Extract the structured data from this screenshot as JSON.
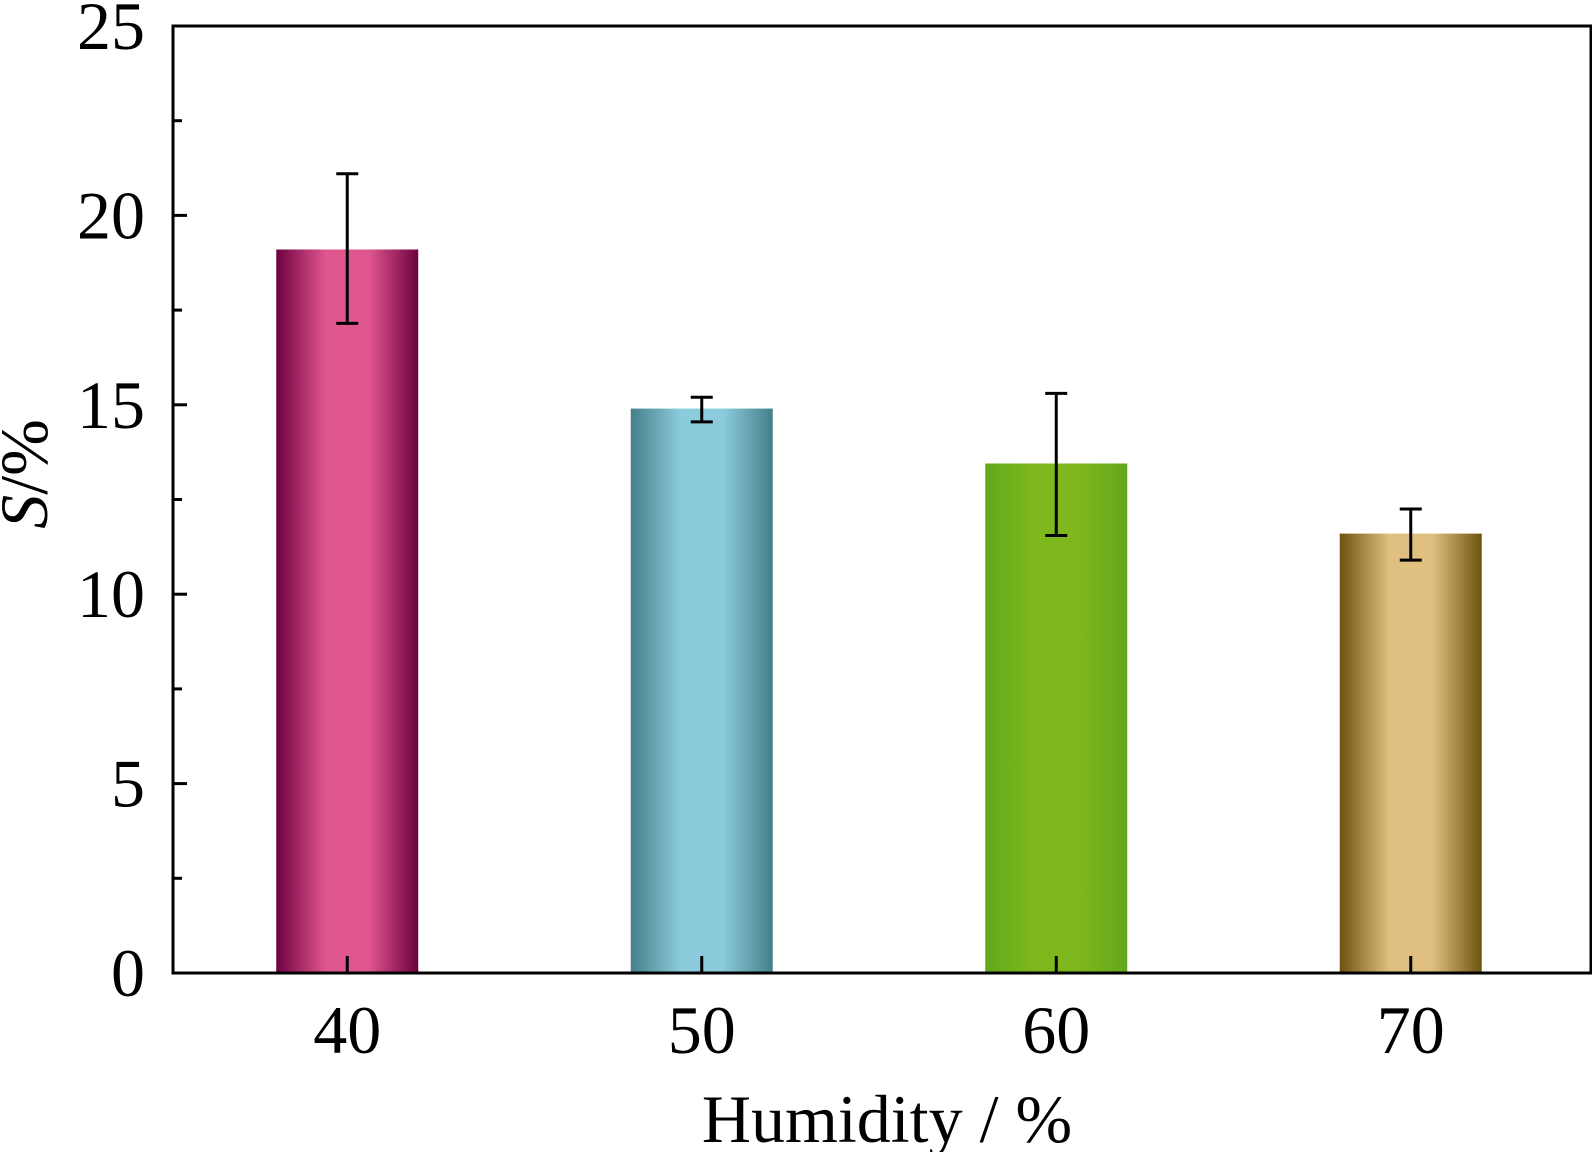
{
  "chart_data": {
    "type": "bar",
    "categories": [
      "40",
      "50",
      "60",
      "70"
    ],
    "values": [
      19.1,
      14.9,
      13.45,
      11.6
    ],
    "error_low": [
      17.15,
      14.55,
      11.55,
      10.9
    ],
    "error_high": [
      21.1,
      15.2,
      15.3,
      12.25
    ],
    "bar_colors": [
      {
        "edge": "#6e0040",
        "center": "#e0578f"
      },
      {
        "edge": "#43808a",
        "center": "#8ccbdc"
      },
      {
        "edge": "#62a81c",
        "center": "#7eb81c"
      },
      {
        "edge": "#6e5210",
        "center": "#e0c080"
      }
    ],
    "xlabel": "Humidity / %",
    "ylabel_italic": "S",
    "ylabel_rest": "/%",
    "ylim": [
      0,
      25
    ],
    "yticks": [
      0,
      5,
      10,
      15,
      20,
      25
    ],
    "yticks_minor": [
      2.5,
      7.5,
      12.5,
      17.5,
      22.5
    ],
    "grid": false,
    "legend": "none"
  }
}
